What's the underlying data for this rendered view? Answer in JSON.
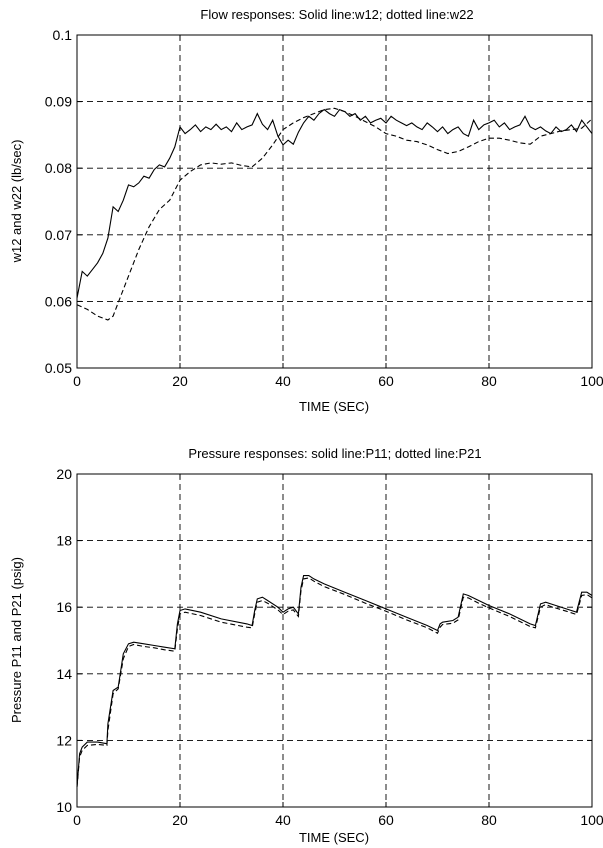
{
  "chart_data": [
    {
      "type": "line",
      "title": "Flow responses: Solid line:w12; dotted line:w22",
      "xlabel": "TIME (SEC)",
      "ylabel": "w12 and w22 (lb/sec)",
      "xlim": [
        0,
        100
      ],
      "ylim": [
        0.05,
        0.1
      ],
      "xticks": [
        "0",
        "20",
        "40",
        "60",
        "80",
        "100"
      ],
      "yticks": [
        "0.05",
        "0.06",
        "0.07",
        "0.08",
        "0.09",
        "0.1"
      ],
      "grid": true,
      "series": [
        {
          "style": "solid",
          "x": [
            0,
            1,
            2,
            3,
            4,
            5,
            6,
            7,
            8,
            9,
            10,
            11,
            12,
            13,
            14,
            15,
            16,
            17,
            18,
            19,
            20,
            21,
            22,
            23,
            24,
            25,
            26,
            27,
            28,
            29,
            30,
            31,
            32,
            33,
            34,
            35,
            36,
            37,
            38,
            39,
            40,
            41,
            42,
            43,
            44,
            45,
            46,
            47,
            48,
            49,
            50,
            51,
            52,
            53,
            54,
            55,
            56,
            57,
            58,
            59,
            60,
            61,
            62,
            63,
            64,
            65,
            66,
            67,
            68,
            69,
            70,
            71,
            72,
            73,
            74,
            75,
            76,
            77,
            78,
            79,
            80,
            81,
            82,
            83,
            84,
            85,
            86,
            87,
            88,
            89,
            90,
            91,
            92,
            93,
            94,
            95,
            96,
            97,
            98,
            99,
            100
          ],
          "y": [
            0.0605,
            0.0645,
            0.0638,
            0.0648,
            0.0658,
            0.0672,
            0.0695,
            0.0742,
            0.0735,
            0.0752,
            0.0775,
            0.0772,
            0.0778,
            0.0788,
            0.0785,
            0.0798,
            0.0805,
            0.0802,
            0.0815,
            0.0832,
            0.0862,
            0.0852,
            0.0858,
            0.0865,
            0.0855,
            0.0862,
            0.0858,
            0.0866,
            0.0858,
            0.0862,
            0.0855,
            0.0868,
            0.0858,
            0.0862,
            0.0865,
            0.0882,
            0.0866,
            0.0858,
            0.0872,
            0.0848,
            0.0835,
            0.0842,
            0.0836,
            0.0854,
            0.0868,
            0.0878,
            0.0872,
            0.0882,
            0.0888,
            0.0882,
            0.0878,
            0.0888,
            0.0885,
            0.0878,
            0.0882,
            0.0872,
            0.0878,
            0.0868,
            0.0872,
            0.0875,
            0.0868,
            0.0878,
            0.0872,
            0.0868,
            0.0864,
            0.0868,
            0.0862,
            0.0858,
            0.0868,
            0.0862,
            0.0855,
            0.0862,
            0.0852,
            0.0858,
            0.0862,
            0.0852,
            0.0848,
            0.0872,
            0.0858,
            0.0865,
            0.0868,
            0.0872,
            0.0862,
            0.0868,
            0.0858,
            0.0862,
            0.0865,
            0.0878,
            0.0862,
            0.0858,
            0.0862,
            0.0856,
            0.0852,
            0.0862,
            0.0855,
            0.0858,
            0.0865,
            0.0855,
            0.0872,
            0.0862,
            0.0852
          ]
        },
        {
          "style": "dashed",
          "x": [
            0,
            2,
            4,
            6,
            7,
            8,
            10,
            12,
            14,
            16,
            18,
            20,
            22,
            24,
            26,
            28,
            30,
            32,
            34,
            36,
            38,
            40,
            42,
            44,
            46,
            48,
            50,
            52,
            54,
            56,
            58,
            60,
            62,
            64,
            66,
            68,
            70,
            72,
            74,
            76,
            78,
            80,
            82,
            84,
            86,
            88,
            90,
            92,
            94,
            96,
            98,
            100
          ],
          "y": [
            0.0595,
            0.0588,
            0.0578,
            0.0572,
            0.0578,
            0.0598,
            0.0638,
            0.0678,
            0.0712,
            0.0738,
            0.0752,
            0.0782,
            0.0795,
            0.0805,
            0.0808,
            0.0806,
            0.0808,
            0.0804,
            0.0802,
            0.0815,
            0.0835,
            0.0858,
            0.0868,
            0.0876,
            0.0882,
            0.0888,
            0.089,
            0.0885,
            0.0878,
            0.087,
            0.0862,
            0.0852,
            0.0848,
            0.0842,
            0.084,
            0.0835,
            0.0828,
            0.0822,
            0.0825,
            0.0832,
            0.084,
            0.0845,
            0.0845,
            0.0842,
            0.0838,
            0.0836,
            0.0848,
            0.0852,
            0.0856,
            0.0858,
            0.086,
            0.0874
          ]
        }
      ]
    },
    {
      "type": "line",
      "title": "Pressure responses: solid line:P11; dotted line:P21",
      "xlabel": "TIME (SEC)",
      "ylabel": "Pressure P11 and P21 (psig)",
      "xlim": [
        0,
        100
      ],
      "ylim": [
        10,
        20
      ],
      "xticks": [
        "0",
        "20",
        "40",
        "60",
        "80",
        "100"
      ],
      "yticks": [
        "10",
        "12",
        "14",
        "16",
        "18",
        "20"
      ],
      "grid": true,
      "series": [
        {
          "style": "solid",
          "x": [
            0,
            0.5,
            1,
            2,
            4,
            5.8,
            6,
            7,
            8,
            9,
            10,
            11,
            13,
            15,
            17,
            19,
            19.5,
            20,
            21,
            24,
            28,
            33,
            34,
            34.5,
            35,
            36,
            37,
            39,
            40,
            41,
            42,
            43,
            43.5,
            44,
            45,
            46,
            48,
            52,
            56,
            60,
            64,
            68,
            70,
            70.5,
            71,
            73,
            74,
            75,
            76,
            78,
            80,
            84,
            88,
            89,
            90,
            91,
            92,
            95,
            97,
            98,
            99,
            100
          ],
          "y": [
            10.6,
            11.6,
            11.8,
            11.95,
            11.95,
            11.9,
            12.5,
            13.5,
            13.6,
            14.6,
            14.9,
            14.95,
            14.9,
            14.85,
            14.8,
            14.75,
            15.5,
            15.9,
            15.95,
            15.85,
            15.65,
            15.5,
            15.45,
            15.9,
            16.25,
            16.3,
            16.2,
            16.0,
            15.85,
            15.95,
            16.0,
            15.8,
            16.6,
            16.95,
            16.95,
            16.85,
            16.7,
            16.45,
            16.2,
            15.95,
            15.7,
            15.45,
            15.3,
            15.5,
            15.55,
            15.6,
            15.7,
            16.4,
            16.35,
            16.2,
            16.05,
            15.8,
            15.5,
            15.45,
            16.1,
            16.15,
            16.1,
            15.95,
            15.85,
            16.45,
            16.45,
            16.35
          ]
        },
        {
          "style": "dashed",
          "x": [
            0,
            0.5,
            1,
            2,
            4,
            5.8,
            6,
            7,
            8,
            9,
            10,
            11,
            13,
            15,
            17,
            19,
            19.5,
            20,
            21,
            24,
            28,
            33,
            34,
            34.5,
            35,
            36,
            37,
            39,
            40,
            41,
            42,
            43,
            43.5,
            44,
            45,
            46,
            48,
            52,
            56,
            60,
            64,
            68,
            70,
            70.5,
            71,
            73,
            74,
            75,
            76,
            78,
            80,
            84,
            88,
            89,
            90,
            91,
            92,
            95,
            97,
            98,
            99,
            100
          ],
          "y": [
            10.6,
            11.5,
            11.7,
            11.85,
            11.88,
            11.85,
            12.3,
            13.4,
            13.55,
            14.45,
            14.82,
            14.88,
            14.82,
            14.78,
            14.72,
            14.68,
            15.35,
            15.8,
            15.85,
            15.75,
            15.55,
            15.4,
            15.38,
            15.8,
            16.15,
            16.2,
            16.12,
            15.92,
            15.78,
            15.88,
            15.92,
            15.72,
            16.5,
            16.85,
            16.88,
            16.78,
            16.62,
            16.38,
            16.12,
            15.88,
            15.62,
            15.38,
            15.22,
            15.4,
            15.48,
            15.52,
            15.62,
            16.3,
            16.28,
            16.12,
            15.98,
            15.72,
            15.42,
            15.38,
            16.0,
            16.08,
            16.02,
            15.88,
            15.78,
            16.35,
            16.38,
            16.28
          ]
        }
      ]
    }
  ]
}
